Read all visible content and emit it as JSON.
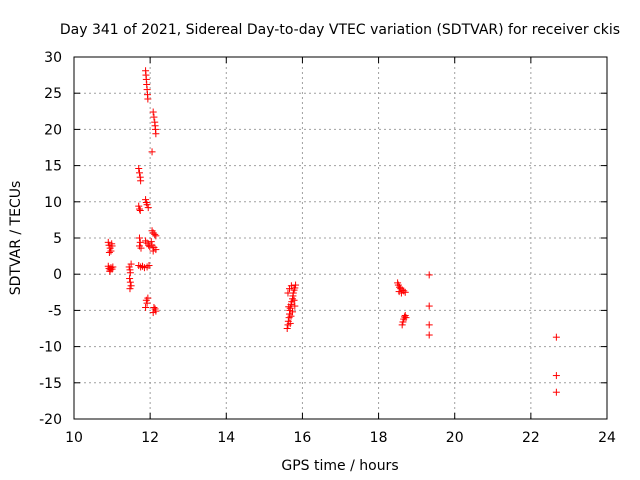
{
  "chart_data": {
    "type": "scatter",
    "title": "Day 341 of 2021, Sidereal Day-to-day VTEC variation (SDTVAR) for receiver ckis",
    "xlabel": "GPS time / hours",
    "ylabel": "SDTVAR / TECUs",
    "xlim": [
      10,
      24
    ],
    "ylim": [
      -20,
      30
    ],
    "xticks": [
      10,
      12,
      14,
      16,
      18,
      20,
      22,
      24
    ],
    "yticks": [
      -20,
      -15,
      -10,
      -5,
      0,
      5,
      10,
      15,
      20,
      25,
      30
    ],
    "grid": true,
    "marker": "+",
    "color": "#ff0000",
    "series": [
      {
        "name": "ckis",
        "points": [
          [
            10.9,
            4.4
          ],
          [
            10.92,
            4.0
          ],
          [
            10.95,
            3.6
          ],
          [
            10.97,
            3.2
          ],
          [
            11.0,
            3.9
          ],
          [
            10.93,
            3.0
          ],
          [
            10.99,
            4.2
          ],
          [
            10.9,
            1.1
          ],
          [
            10.92,
            0.8
          ],
          [
            10.95,
            0.6
          ],
          [
            10.97,
            0.9
          ],
          [
            11.0,
            0.7
          ],
          [
            11.02,
            1.0
          ],
          [
            10.94,
            0.4
          ],
          [
            11.45,
            1.0
          ],
          [
            11.47,
            0.6
          ],
          [
            11.48,
            0.2
          ],
          [
            11.46,
            -0.6
          ],
          [
            11.48,
            -1.1
          ],
          [
            11.5,
            -1.6
          ],
          [
            11.47,
            -2.0
          ],
          [
            11.5,
            1.4
          ],
          [
            11.7,
            14.6
          ],
          [
            11.72,
            14.0
          ],
          [
            11.74,
            13.4
          ],
          [
            11.75,
            12.9
          ],
          [
            11.7,
            9.4
          ],
          [
            11.72,
            9.0
          ],
          [
            11.74,
            8.8
          ],
          [
            11.72,
            5.0
          ],
          [
            11.74,
            4.4
          ],
          [
            11.72,
            3.9
          ],
          [
            11.76,
            3.6
          ],
          [
            11.7,
            1.2
          ],
          [
            11.75,
            1.0
          ],
          [
            11.8,
            1.1
          ],
          [
            11.85,
            0.9
          ],
          [
            11.92,
            1.0
          ],
          [
            11.97,
            1.2
          ],
          [
            11.88,
            28.1
          ],
          [
            11.89,
            27.5
          ],
          [
            11.9,
            26.9
          ],
          [
            11.91,
            26.2
          ],
          [
            11.92,
            25.5
          ],
          [
            11.93,
            24.8
          ],
          [
            11.94,
            24.2
          ],
          [
            11.88,
            10.3
          ],
          [
            11.9,
            9.9
          ],
          [
            11.92,
            9.6
          ],
          [
            11.95,
            9.2
          ],
          [
            11.88,
            4.6
          ],
          [
            11.92,
            4.3
          ],
          [
            11.96,
            4.0
          ],
          [
            11.99,
            3.8
          ],
          [
            11.9,
            -3.6
          ],
          [
            11.92,
            -4.0
          ],
          [
            11.88,
            -4.6
          ],
          [
            11.94,
            -3.3
          ],
          [
            12.08,
            22.4
          ],
          [
            12.1,
            21.7
          ],
          [
            12.12,
            21.0
          ],
          [
            12.13,
            20.5
          ],
          [
            12.14,
            20.0
          ],
          [
            12.15,
            19.4
          ],
          [
            12.05,
            16.9
          ],
          [
            12.05,
            6.0
          ],
          [
            12.08,
            5.7
          ],
          [
            12.12,
            5.5
          ],
          [
            12.15,
            5.3
          ],
          [
            12.05,
            4.0
          ],
          [
            12.1,
            3.7
          ],
          [
            12.15,
            3.4
          ],
          [
            12.03,
            4.5
          ],
          [
            12.08,
            3.2
          ],
          [
            12.1,
            -4.6
          ],
          [
            12.13,
            -4.8
          ],
          [
            12.15,
            -5.1
          ],
          [
            12.08,
            -5.3
          ],
          [
            15.6,
            -7.5
          ],
          [
            15.62,
            -7.0
          ],
          [
            15.63,
            -6.5
          ],
          [
            15.65,
            -6.0
          ],
          [
            15.66,
            -5.5
          ],
          [
            15.67,
            -5.0
          ],
          [
            15.68,
            -4.7
          ],
          [
            15.7,
            -4.2
          ],
          [
            15.72,
            -3.8
          ],
          [
            15.74,
            -3.4
          ],
          [
            15.75,
            -3.0
          ],
          [
            15.76,
            -2.6
          ],
          [
            15.78,
            -2.2
          ],
          [
            15.8,
            -1.9
          ],
          [
            15.82,
            -1.5
          ],
          [
            15.64,
            -4.5
          ],
          [
            15.7,
            -5.8
          ],
          [
            15.74,
            -5.2
          ],
          [
            15.62,
            -2.6
          ],
          [
            15.66,
            -2.0
          ],
          [
            15.71,
            -1.6
          ],
          [
            15.78,
            -3.6
          ],
          [
            15.8,
            -4.4
          ],
          [
            15.68,
            -6.8
          ],
          [
            18.5,
            -1.2
          ],
          [
            18.52,
            -1.5
          ],
          [
            18.55,
            -1.8
          ],
          [
            18.58,
            -2.0
          ],
          [
            18.62,
            -2.2
          ],
          [
            18.66,
            -2.3
          ],
          [
            18.7,
            -2.5
          ],
          [
            18.54,
            -2.4
          ],
          [
            18.6,
            -2.6
          ],
          [
            18.62,
            -7.0
          ],
          [
            18.64,
            -6.6
          ],
          [
            18.66,
            -6.2
          ],
          [
            18.68,
            -5.9
          ],
          [
            18.7,
            -5.7
          ],
          [
            18.72,
            -6.0
          ],
          [
            19.33,
            -0.1
          ],
          [
            19.33,
            -4.4
          ],
          [
            19.33,
            -7.0
          ],
          [
            19.33,
            -8.4
          ],
          [
            22.67,
            -8.7
          ],
          [
            22.67,
            -14.0
          ],
          [
            22.67,
            -16.3
          ]
        ]
      }
    ]
  }
}
